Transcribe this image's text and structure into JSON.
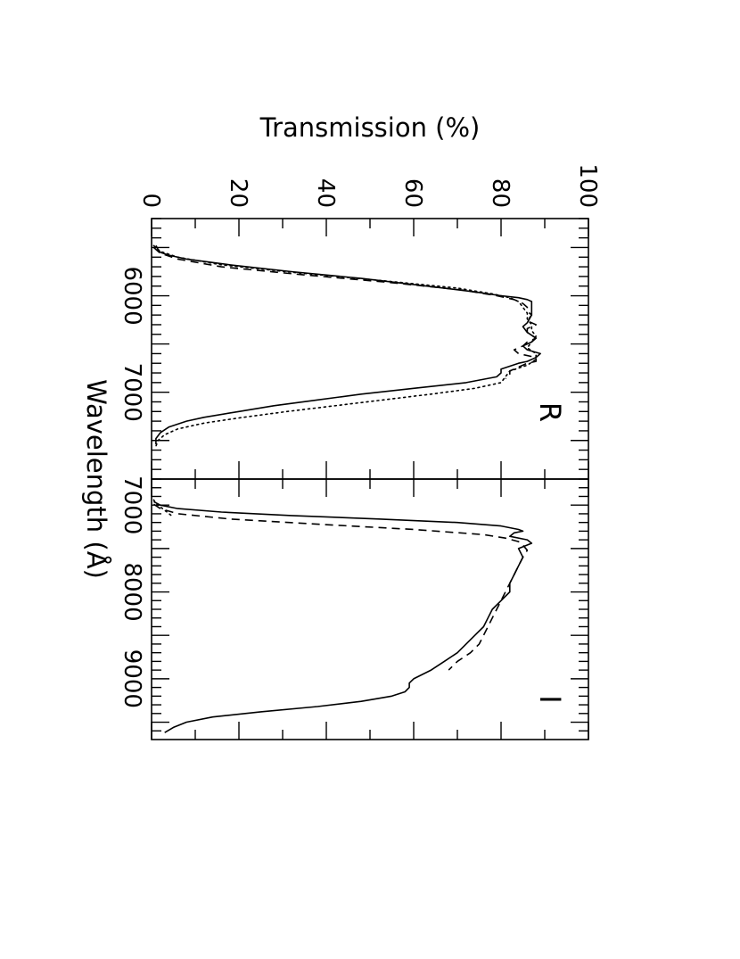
{
  "chart_data": [
    {
      "type": "line",
      "panel_label": "R",
      "xlabel": "Wavelength (Å)",
      "ylabel": "Transmission (%)",
      "xlim": [
        5200,
        7900
      ],
      "ylim": [
        0,
        100
      ],
      "x_ticks": [
        "6000",
        "7000"
      ],
      "y_ticks": [
        "0",
        "20",
        "40",
        "60",
        "80",
        "100"
      ],
      "series": [
        {
          "style": "solid",
          "x": [
            5480,
            5520,
            5550,
            5580,
            5620,
            5680,
            5750,
            5820,
            5900,
            5960,
            6000,
            6020,
            6040,
            6060,
            6120,
            6200,
            6280,
            6320,
            6380,
            6440,
            6480,
            6520,
            6560,
            6600,
            6640,
            6680,
            6700,
            6730,
            6760,
            6800,
            6840,
            6900,
            6960,
            7020,
            7080,
            7140,
            7200,
            7260,
            7300,
            7360,
            7420,
            7480,
            7540
          ],
          "y": [
            1,
            1.5,
            2,
            4,
            8,
            18,
            32,
            48,
            63,
            74,
            80,
            84,
            86,
            87,
            87,
            87,
            86,
            85,
            86,
            88,
            87,
            85,
            86,
            89,
            88,
            86,
            84,
            82,
            80,
            80,
            79,
            72,
            60,
            48,
            38,
            28,
            20,
            12,
            8,
            4,
            2,
            1,
            1
          ]
        },
        {
          "style": "dashed",
          "x": [
            5500,
            5560,
            5620,
            5700,
            5780,
            5860,
            5940,
            6000,
            6040,
            6080,
            6120,
            6160,
            6200,
            6260,
            6300,
            6340,
            6380,
            6440,
            6480,
            6520,
            6560,
            6600,
            6640,
            6680,
            6700,
            6740,
            6780,
            6820,
            6860
          ],
          "y": [
            0.5,
            2,
            6,
            16,
            34,
            54,
            71,
            79,
            83,
            85,
            86,
            86,
            87,
            86,
            88,
            86,
            86,
            88,
            86,
            85,
            83,
            84,
            88,
            88,
            86,
            84,
            82,
            82,
            81
          ]
        },
        {
          "style": "dotted",
          "x": [
            5480,
            5540,
            5600,
            5680,
            5760,
            5840,
            5920,
            5980,
            6020,
            6060,
            6120,
            6180,
            6240,
            6300,
            6360,
            6420,
            6480,
            6540,
            6600,
            6660,
            6720,
            6780,
            6840,
            6900,
            6960,
            7020,
            7080,
            7140,
            7200,
            7260,
            7320,
            7380,
            7440,
            7500,
            7560
          ],
          "y": [
            0.5,
            2,
            6,
            16,
            33,
            52,
            70,
            78,
            82,
            84,
            85,
            86,
            86,
            87,
            87,
            88,
            87,
            86,
            88,
            88,
            86,
            82,
            81,
            80,
            74,
            64,
            53,
            42,
            31,
            21,
            12,
            6,
            3,
            1.5,
            1
          ]
        }
      ]
    },
    {
      "type": "line",
      "panel_label": "I",
      "xlabel": "Wavelength (Å)",
      "ylabel": "",
      "xlim": [
        6700,
        9700
      ],
      "ylim": [
        0,
        100
      ],
      "x_ticks": [
        "7000",
        "8000",
        "9000"
      ],
      "series": [
        {
          "style": "solid",
          "x": [
            6960,
            7000,
            7040,
            7080,
            7120,
            7160,
            7200,
            7240,
            7280,
            7300,
            7320,
            7360,
            7400,
            7440,
            7500,
            7600,
            7700,
            7800,
            7900,
            8000,
            8100,
            8200,
            8300,
            8400,
            8500,
            8600,
            8700,
            8800,
            8900,
            8950,
            9000,
            9050,
            9100,
            9150,
            9200,
            9260,
            9320,
            9380,
            9440,
            9500,
            9560,
            9620
          ],
          "y": [
            0.5,
            2,
            6,
            16,
            32,
            52,
            70,
            80,
            84,
            85,
            83,
            82,
            86,
            87,
            84,
            85,
            84,
            83,
            82,
            82,
            80,
            78,
            77,
            76,
            74,
            72,
            70,
            67,
            64,
            62,
            60,
            59,
            59,
            58,
            55,
            48,
            38,
            25,
            14,
            8,
            5,
            3
          ]
        },
        {
          "style": "dashed",
          "x": [
            6990,
            7040,
            7100,
            7160,
            7220,
            7280,
            7340,
            7380,
            7420,
            7460,
            7520,
            7600,
            7700,
            7800,
            7900,
            8000,
            8100,
            8200,
            8300,
            8400,
            8500,
            8600,
            8700,
            8800,
            8900
          ],
          "y": [
            0.5,
            2,
            6,
            18,
            38,
            60,
            76,
            81,
            84,
            85,
            86,
            85,
            84,
            83,
            82,
            81,
            80,
            79,
            78,
            77,
            76,
            75,
            73,
            70,
            68
          ]
        },
        {
          "style": "dotted",
          "x": [
            6940,
            6980,
            7020,
            7060,
            7100,
            7140
          ],
          "y": [
            0.5,
            1,
            2,
            3,
            4,
            5
          ]
        }
      ]
    }
  ]
}
